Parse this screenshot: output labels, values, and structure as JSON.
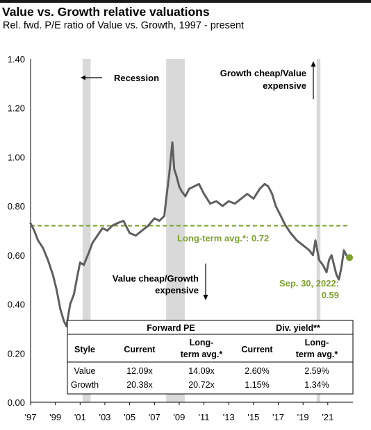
{
  "title": "Value vs. Growth relative valuations",
  "subtitle": "Rel. fwd. P/E ratio of Value vs. Growth, 1997 - present",
  "colors": {
    "series": "#5f5f5f",
    "avg_line": "#7ea12f",
    "recession": "#d9d9d9",
    "current_dot": "#7ea12f",
    "current_label": "#7ea12f"
  },
  "annotations": {
    "recession": "Recession",
    "growth_cheap_1": "Growth cheap/Value",
    "growth_cheap_2": "expensive",
    "value_cheap_1": "Value cheap/Growth",
    "value_cheap_2": "expensive",
    "longterm": "Long-term avg.*:  0.72",
    "current_1": "Sep. 30, 2022:",
    "current_2": "0.59"
  },
  "table": {
    "group_headers": [
      "Forward PE",
      "Div. yield**"
    ],
    "col_headers": [
      "Style",
      "Current",
      "Long-term avg.*",
      "Current",
      "Long-term avg.*"
    ],
    "col_header_lines": [
      [
        "Style"
      ],
      [
        "Current"
      ],
      [
        "Long-",
        "term avg.*"
      ],
      [
        "Current"
      ],
      [
        "Long-",
        "term avg.*"
      ]
    ],
    "rows": [
      [
        "Value",
        "12.09x",
        "14.09x",
        "2.60%",
        "2.59%"
      ],
      [
        "Growth",
        "20.38x",
        "20.72x",
        "1.15%",
        "1.34%"
      ]
    ]
  },
  "chart_data": {
    "type": "line",
    "title": "Value vs. Growth relative valuations",
    "subtitle": "Rel. fwd. P/E ratio of Value vs. Growth, 1997 - present",
    "xlabel": "",
    "ylabel": "",
    "ylim": [
      0.0,
      1.4
    ],
    "xlim": [
      1997.0,
      2022.75
    ],
    "yticks": [
      "0.00",
      "0.20",
      "0.40",
      "0.60",
      "0.80",
      "1.00",
      "1.20",
      "1.40"
    ],
    "yticks_values": [
      0.0,
      0.2,
      0.4,
      0.6,
      0.8,
      1.0,
      1.2,
      1.4
    ],
    "xticks": [
      "'97",
      "'99",
      "'01",
      "'03",
      "'05",
      "'07",
      "'09",
      "'11",
      "'13",
      "'15",
      "'17",
      "'19",
      "'21"
    ],
    "xticks_values": [
      1997,
      1999,
      2001,
      2003,
      2005,
      2007,
      2009,
      2011,
      2013,
      2015,
      2017,
      2019,
      2021
    ],
    "grid": false,
    "legend": "none",
    "long_term_average": 0.72,
    "recessions": [
      [
        2001.2,
        2001.85
      ],
      [
        2007.95,
        2009.45
      ],
      [
        2020.1,
        2020.4
      ]
    ],
    "current_point": {
      "x": 2022.75,
      "y": 0.59
    },
    "series": [
      {
        "x": [
          1997.0,
          1997.3,
          1997.6,
          1998.0,
          1998.4,
          1998.8,
          1999.1,
          1999.4,
          1999.7,
          1999.9,
          2000.2,
          2000.5,
          2000.8,
          2001.0,
          2001.3,
          2001.7,
          2002.0,
          2002.4,
          2002.8,
          2003.2,
          2003.6,
          2004.0,
          2004.5,
          2005.0,
          2005.5,
          2006.0,
          2006.5,
          2007.0,
          2007.4,
          2007.8,
          2008.0,
          2008.2,
          2008.45,
          2008.6,
          2008.8,
          2009.0,
          2009.2,
          2009.5,
          2009.8,
          2010.2,
          2010.6,
          2011.0,
          2011.5,
          2012.0,
          2012.5,
          2013.0,
          2013.5,
          2014.0,
          2014.5,
          2015.0,
          2015.5,
          2015.9,
          2016.2,
          2016.5,
          2016.8,
          2017.2,
          2017.6,
          2018.0,
          2018.5,
          2019.0,
          2019.5,
          2019.8,
          2020.0,
          2020.3,
          2020.6,
          2020.9,
          2021.1,
          2021.3,
          2021.5,
          2021.7,
          2021.9,
          2022.1,
          2022.3,
          2022.5,
          2022.75
        ],
        "values": [
          0.73,
          0.7,
          0.66,
          0.63,
          0.58,
          0.52,
          0.46,
          0.38,
          0.33,
          0.31,
          0.4,
          0.44,
          0.52,
          0.57,
          0.56,
          0.61,
          0.65,
          0.68,
          0.71,
          0.7,
          0.72,
          0.73,
          0.74,
          0.69,
          0.68,
          0.7,
          0.72,
          0.75,
          0.74,
          0.76,
          0.85,
          0.93,
          1.06,
          0.95,
          0.92,
          0.88,
          0.86,
          0.84,
          0.87,
          0.88,
          0.89,
          0.85,
          0.81,
          0.82,
          0.8,
          0.82,
          0.81,
          0.83,
          0.85,
          0.83,
          0.87,
          0.89,
          0.88,
          0.85,
          0.8,
          0.76,
          0.72,
          0.69,
          0.66,
          0.64,
          0.62,
          0.6,
          0.66,
          0.58,
          0.56,
          0.53,
          0.58,
          0.6,
          0.56,
          0.52,
          0.5,
          0.55,
          0.62,
          0.6,
          0.59
        ]
      }
    ]
  }
}
